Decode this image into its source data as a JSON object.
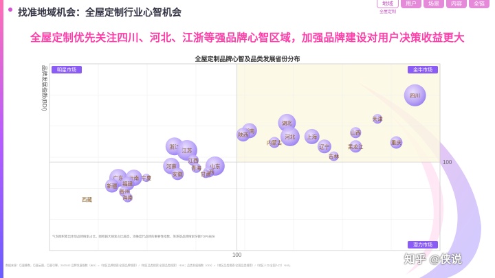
{
  "page": {
    "title": "找准地域机会：全屋定制行业心智机会",
    "headline": "全屋定制优先关注四川、河北、江浙等强品牌心智区域，加强品牌建设对用户决策收益更大",
    "nav": [
      {
        "label": "地域",
        "sub": "全屋定制",
        "active": true
      },
      {
        "label": "用户"
      },
      {
        "label": "场景"
      },
      {
        "label": "内容"
      },
      {
        "label": "全链"
      }
    ],
    "footnote": "气泡图积累出体现品牌搜索占比，图积越大搜索占比越高，添维度代品牌的重要性指数，蒸蒸基品牌搜索份额TOP5省份",
    "notes": "数据来源：巨量算数，巨量云图，巨量引擎。2023.02  品牌发展指数（BDI）=（地区品牌搜索/全国品牌搜索）/（地区品类搜索/全国品类搜索）*100；品类发展指数（CDI）=（地区品类搜索/全国品类搜索）/（地区人口/全国人口）*100。",
    "watermark": "知乎 @侠说",
    "brand_colors": {
      "pink": "#ff3da8",
      "purple": "#8a5cf5",
      "quadrant_label": "#7b4fd0"
    }
  },
  "chart_data": {
    "type": "scatter",
    "title": "全屋定制品牌心智及品类发展省份分布",
    "ylabel": "品牌发展指数(BDI)",
    "xlabel": "",
    "reference_lines": {
      "x": 100,
      "y": 100
    },
    "x_tick_labels": [
      "100"
    ],
    "y_tick_labels": [
      "100"
    ],
    "xlim": [
      40,
      165
    ],
    "ylim": [
      55,
      150
    ],
    "grid": true,
    "quadrants": {
      "top_left": "明星市场",
      "top_right": "金牛市场",
      "bottom_right": "潜力市场"
    },
    "points": [
      {
        "name": "四川",
        "x": 157,
        "y": 134,
        "size": 16
      },
      {
        "name": "天津",
        "x": 145,
        "y": 122,
        "size": 7
      },
      {
        "name": "湖北",
        "x": 116,
        "y": 120,
        "size": 13
      },
      {
        "name": "湖南",
        "x": 104,
        "y": 116,
        "size": 11
      },
      {
        "name": "陕西",
        "x": 102,
        "y": 114,
        "size": 10
      },
      {
        "name": "河北",
        "x": 117,
        "y": 113,
        "size": 14
      },
      {
        "name": "上海",
        "x": 124,
        "y": 113,
        "size": 11
      },
      {
        "name": "山西",
        "x": 138,
        "y": 115,
        "size": 8
      },
      {
        "name": "重庆",
        "x": 151,
        "y": 110,
        "size": 9
      },
      {
        "name": "内蒙古",
        "x": 112,
        "y": 110,
        "size": 8
      },
      {
        "name": "辽宁",
        "x": 128,
        "y": 108,
        "size": 10
      },
      {
        "name": "黑龙江",
        "x": 138,
        "y": 108,
        "size": 9
      },
      {
        "name": "吉林",
        "x": 131,
        "y": 103,
        "size": 7
      },
      {
        "name": "浙江",
        "x": 80,
        "y": 108,
        "size": 13
      },
      {
        "name": "江苏",
        "x": 84,
        "y": 106,
        "size": 15
      },
      {
        "name": "江西",
        "x": 86,
        "y": 101,
        "size": 8
      },
      {
        "name": "河南",
        "x": 79,
        "y": 98,
        "size": 12
      },
      {
        "name": "山东",
        "x": 93,
        "y": 98,
        "size": 14
      },
      {
        "name": "安徽",
        "x": 81,
        "y": 94,
        "size": 9
      },
      {
        "name": "青海",
        "x": 87,
        "y": 97,
        "size": 7
      },
      {
        "name": "广西",
        "x": 91,
        "y": 95,
        "size": 8
      },
      {
        "name": "甘肃",
        "x": 90,
        "y": 94,
        "size": 6
      },
      {
        "name": "广东",
        "x": 62,
        "y": 92,
        "size": 13
      },
      {
        "name": "云南",
        "x": 67,
        "y": 92,
        "size": 12
      },
      {
        "name": "宁夏",
        "x": 71,
        "y": 92,
        "size": 6
      },
      {
        "name": "福建",
        "x": 65,
        "y": 89,
        "size": 10
      },
      {
        "name": "新疆",
        "x": 60,
        "y": 88,
        "size": 10
      },
      {
        "name": "贵州",
        "x": 64,
        "y": 85,
        "size": 8
      },
      {
        "name": "海南",
        "x": 65,
        "y": 82,
        "size": 7
      },
      {
        "name": "西藏",
        "x": 52,
        "y": 81,
        "size": 0
      }
    ]
  }
}
